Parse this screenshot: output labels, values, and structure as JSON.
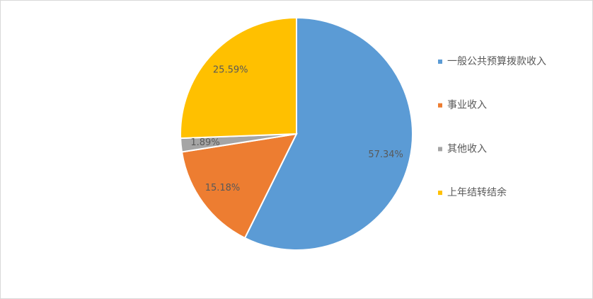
{
  "chart_data": {
    "type": "pie",
    "categories": [
      "一般公共预算拨款收入",
      "事业收入",
      "其他收入",
      "上年结转结余"
    ],
    "values": [
      57.34,
      15.18,
      1.89,
      25.59
    ],
    "value_labels": [
      "57.34%",
      "15.18%",
      "1.89%",
      "25.59%"
    ],
    "colors": [
      "#5b9bd5",
      "#ed7d31",
      "#a5a5a5",
      "#ffc000"
    ],
    "legend": "right"
  }
}
